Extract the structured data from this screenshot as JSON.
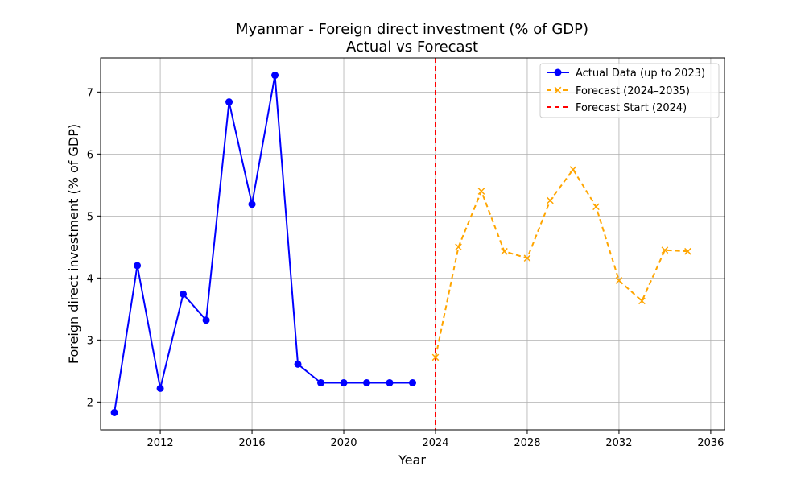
{
  "chart_data": {
    "type": "line",
    "title": "Myanmar - Foreign direct investment (% of GDP)",
    "subtitle": "Actual vs Forecast",
    "xlabel": "Year",
    "ylabel": "Foreign direct investment (% of GDP)",
    "xlim": [
      2009.4,
      2036.6
    ],
    "ylim": [
      1.55,
      7.55
    ],
    "x_ticks": [
      2012,
      2016,
      2020,
      2024,
      2028,
      2032,
      2036
    ],
    "y_ticks": [
      2,
      3,
      4,
      5,
      6,
      7
    ],
    "grid": true,
    "legend_position": "top-right",
    "series": [
      {
        "name": "Actual Data (up to 2023)",
        "color": "#0000ff",
        "marker": "circle",
        "line_style": "solid",
        "x": [
          2010,
          2011,
          2012,
          2013,
          2014,
          2015,
          2016,
          2017,
          2018,
          2019,
          2020,
          2021,
          2022,
          2023
        ],
        "y": [
          1.83,
          4.2,
          2.22,
          3.74,
          3.32,
          6.84,
          5.19,
          7.27,
          2.61,
          2.31,
          2.31,
          2.31,
          2.31,
          2.31
        ]
      },
      {
        "name": "Forecast (2024–2035)",
        "color": "#ffa500",
        "marker": "x",
        "line_style": "dashed",
        "x": [
          2024,
          2025,
          2026,
          2027,
          2028,
          2029,
          2030,
          2031,
          2032,
          2033,
          2034,
          2035
        ],
        "y": [
          2.72,
          4.5,
          5.4,
          4.43,
          4.32,
          5.25,
          5.75,
          5.15,
          3.96,
          3.63,
          4.45,
          4.43
        ]
      }
    ],
    "reference_lines": [
      {
        "name": "Forecast Start (2024)",
        "orientation": "vertical",
        "x": 2024,
        "color": "#ff0000",
        "line_style": "dashed"
      }
    ]
  }
}
